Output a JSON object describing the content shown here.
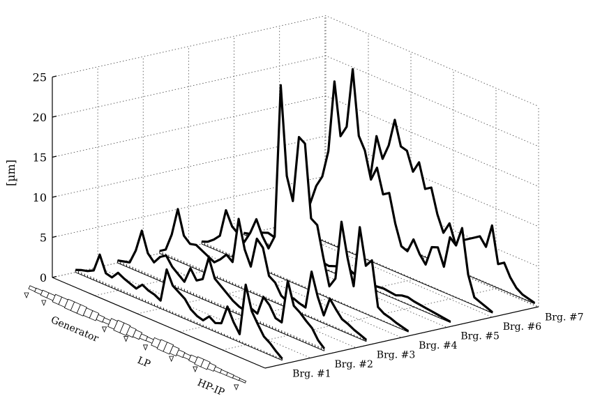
{
  "chart_data": {
    "type": "waterfall-3d",
    "ylabel": "[µm]",
    "zlim": [
      0,
      25
    ],
    "z_ticks": [
      "0",
      "5",
      "10",
      "15",
      "20",
      "25"
    ],
    "grid": true,
    "shaft_sections": [
      "Generator",
      "LP",
      "HP-IP"
    ],
    "series": [
      {
        "name": "Brg. #1",
        "values": [
          0.3,
          0.6,
          0.8,
          1.2,
          3.5,
          1.5,
          1.3,
          2.2,
          1.8,
          1.5,
          1.2,
          2.0,
          1.6,
          1.4,
          1.0,
          5.2,
          3.5,
          3.0,
          2.5,
          1.5,
          1.0,
          0.8,
          1.6,
          1.1,
          1.4,
          3.8,
          2.2,
          1.0,
          7.5,
          4.5,
          3.2,
          2.0,
          1.5,
          0.8,
          0.2
        ]
      },
      {
        "name": "Brg. #2",
        "values": [
          0.3,
          0.5,
          0.7,
          2.5,
          5.3,
          2.8,
          2.0,
          3.0,
          3.5,
          2.4,
          1.8,
          1.2,
          3.2,
          2.0,
          2.5,
          5.5,
          3.2,
          2.6,
          2.0,
          1.4,
          1.0,
          0.8,
          1.4,
          1.1,
          3.5,
          2.8,
          1.5,
          1.3,
          6.8,
          4.0,
          3.5,
          2.8,
          2.2,
          1.0,
          0.3
        ]
      },
      {
        "name": "Brg. #3",
        "values": [
          0.3,
          0.8,
          3.0,
          6.5,
          3.5,
          2.8,
          3.0,
          2.6,
          2.2,
          1.8,
          2.5,
          3.4,
          2.8,
          8.5,
          5.0,
          3.2,
          7.0,
          6.2,
          3.0,
          2.5,
          1.2,
          0.8,
          1.5,
          1.2,
          1.0,
          5.8,
          3.0,
          1.0,
          3.4,
          2.4,
          1.5,
          1.2,
          0.8,
          0.5,
          0.2
        ]
      },
      {
        "name": "Brg. #4",
        "values": [
          0.3,
          0.6,
          1.2,
          2.0,
          5.5,
          3.8,
          3.2,
          2.5,
          4.0,
          6.0,
          4.2,
          3.0,
          4.8,
          24.0,
          13.0,
          10.2,
          18.5,
          18.0,
          9.0,
          8.5,
          4.8,
          1.5,
          2.8,
          10.2,
          6.0,
          2.8,
          10.5,
          6.0,
          7.0,
          1.5,
          1.0,
          0.8,
          0.5,
          0.3,
          0.1
        ]
      },
      {
        "name": "Brg. #5",
        "values": [
          0.2,
          0.4,
          0.8,
          1.2,
          1.5,
          1.3,
          1.0,
          0.9,
          1.2,
          1.6,
          1.1,
          0.9,
          0.8,
          0.7,
          0.6,
          0.9,
          1.1,
          1.4,
          1.0,
          0.8,
          0.6,
          0.5,
          0.6,
          0.7,
          0.6,
          0.5,
          0.8,
          0.9,
          0.7,
          0.6,
          0.5,
          0.4,
          0.3,
          0.2,
          0.1
        ]
      },
      {
        "name": "Brg. #6",
        "values": [
          0.2,
          0.4,
          0.8,
          2.5,
          4.0,
          6.5,
          8.0,
          11.5,
          20.5,
          14.0,
          15.5,
          23.0,
          15.0,
          13.5,
          10.2,
          12.0,
          9.0,
          9.5,
          6.0,
          3.5,
          3.2,
          5.0,
          3.5,
          2.5,
          5.0,
          5.3,
          3.2,
          7.2,
          6.5,
          9.0,
          3.5,
          1.0,
          0.7,
          0.4,
          0.1
        ]
      },
      {
        "name": "Brg. #7",
        "values": [
          0.2,
          0.4,
          1.0,
          1.5,
          2.5,
          4.0,
          6.0,
          7.2,
          12.5,
          10.0,
          12.0,
          15.5,
          12.5,
          12.3,
          10.0,
          11.5,
          8.5,
          9.0,
          6.0,
          4.0,
          5.5,
          3.2,
          4.0,
          4.5,
          5.0,
          5.5,
          4.5,
          7.5,
          3.0,
          3.5,
          2.0,
          1.0,
          0.5,
          0.3,
          0.1
        ]
      }
    ]
  }
}
